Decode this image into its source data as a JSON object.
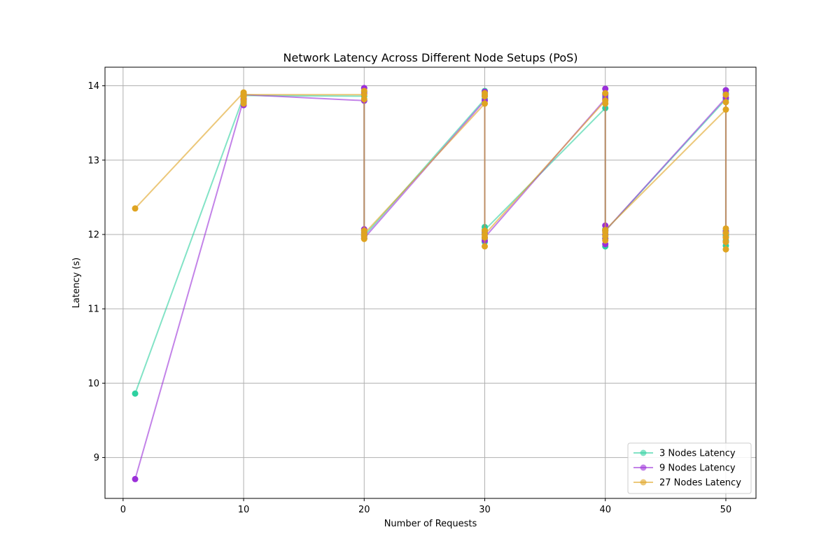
{
  "chart_data": {
    "type": "line",
    "title": "Network Latency Across Different Node Setups (PoS)",
    "xlabel": "Number of Requests",
    "ylabel": "Latency (s)",
    "xlim": [
      -1.5,
      52.5
    ],
    "ylim": [
      8.45,
      14.25
    ],
    "xticks": [
      0,
      10,
      20,
      30,
      40,
      50
    ],
    "yticks": [
      9,
      10,
      11,
      12,
      13,
      14
    ],
    "grid": true,
    "legend_position": "lower-right",
    "series": [
      {
        "name": "3 Nodes Latency",
        "color": "#2ed1a0",
        "x": [
          1,
          10,
          10,
          10,
          10,
          10,
          20,
          20,
          20,
          20,
          20,
          20,
          20,
          20,
          30,
          30,
          30,
          30,
          30,
          30,
          30,
          30,
          40,
          40,
          40,
          40,
          40,
          40,
          40,
          40,
          50,
          50,
          50,
          50,
          50,
          50,
          50,
          50
        ],
        "y": [
          9.86,
          13.86,
          13.78,
          13.9,
          13.82,
          13.87,
          13.86,
          13.92,
          13.8,
          12.0,
          12.05,
          11.95,
          12.02,
          11.98,
          13.82,
          13.93,
          13.88,
          12.1,
          11.9,
          12.02,
          11.95,
          12.06,
          13.7,
          13.85,
          13.9,
          11.84,
          12.0,
          12.07,
          11.95,
          12.05,
          13.82,
          13.9,
          13.94,
          11.85,
          12.0,
          11.92,
          12.05,
          11.98
        ]
      },
      {
        "name": "9 Nodes Latency",
        "color": "#9b30d9",
        "x": [
          1,
          10,
          10,
          10,
          10,
          10,
          20,
          20,
          20,
          20,
          20,
          20,
          20,
          30,
          30,
          30,
          30,
          30,
          30,
          30,
          40,
          40,
          40,
          40,
          40,
          40,
          40,
          40,
          50,
          50,
          50,
          50,
          50,
          50,
          50
        ],
        "y": [
          8.71,
          13.82,
          13.74,
          13.86,
          13.8,
          13.88,
          13.8,
          13.97,
          13.9,
          12.07,
          11.98,
          12.03,
          11.95,
          13.8,
          13.92,
          13.86,
          12.04,
          11.92,
          12.0,
          11.96,
          13.82,
          13.96,
          13.88,
          12.12,
          11.87,
          12.0,
          11.94,
          12.05,
          13.84,
          13.94,
          13.88,
          11.9,
          12.02,
          11.96,
          12.04
        ]
      },
      {
        "name": "27 Nodes Latency",
        "color": "#dfa421",
        "x": [
          1,
          10,
          10,
          10,
          10,
          10,
          20,
          20,
          20,
          20,
          20,
          20,
          20,
          30,
          30,
          30,
          30,
          30,
          30,
          30,
          40,
          40,
          40,
          40,
          40,
          40,
          40,
          50,
          50,
          50,
          50,
          50,
          50,
          50,
          50
        ],
        "y": [
          12.35,
          13.91,
          13.85,
          13.8,
          13.76,
          13.88,
          13.88,
          13.82,
          13.93,
          12.05,
          11.94,
          11.98,
          12.01,
          13.76,
          13.86,
          13.9,
          11.84,
          11.96,
          12.05,
          12.0,
          13.8,
          13.9,
          13.76,
          12.03,
          11.92,
          11.98,
          12.06,
          13.68,
          13.78,
          13.88,
          11.8,
          11.9,
          12.08,
          11.96,
          12.02
        ]
      }
    ]
  }
}
